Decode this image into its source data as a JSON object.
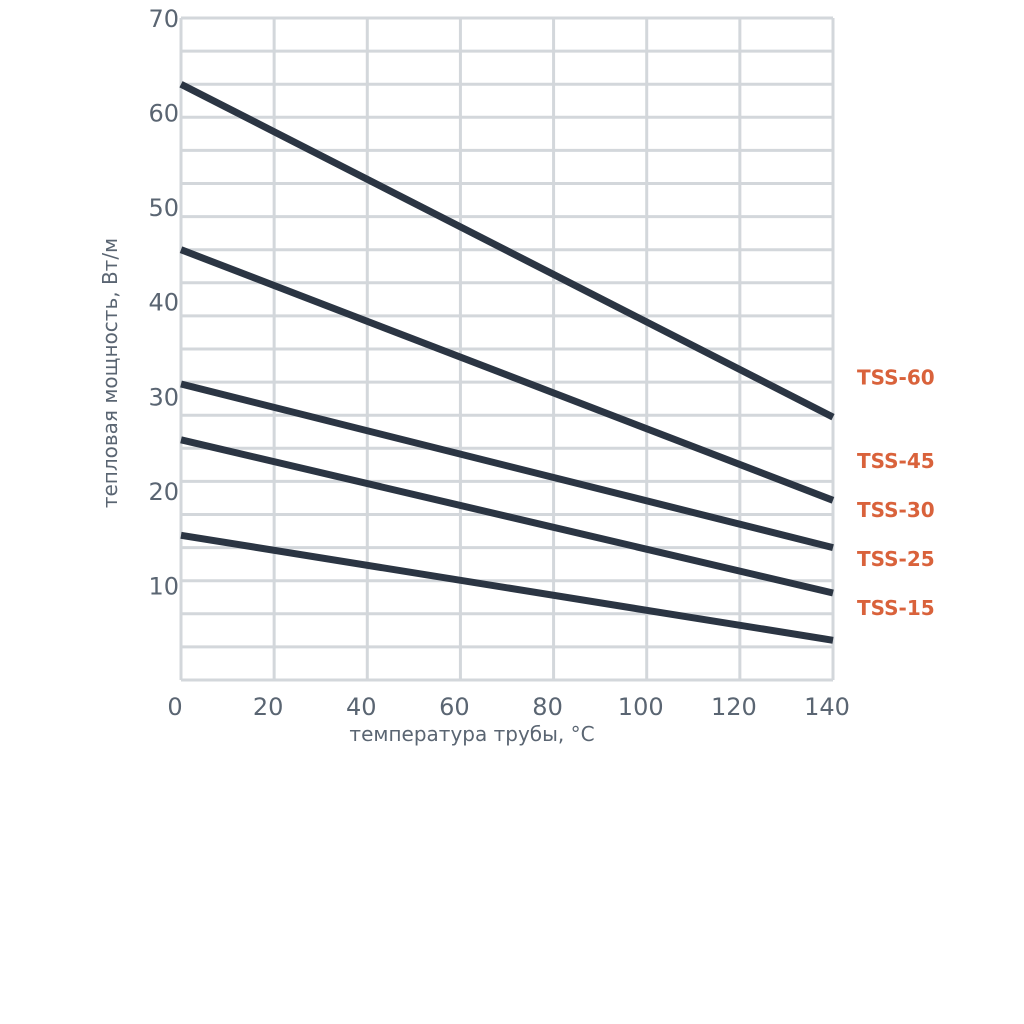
{
  "chart_data": {
    "type": "line",
    "title": "",
    "xlabel": "температура трубы, °C",
    "ylabel": "тепловая мощность, Вт/м",
    "xlim": [
      0,
      140
    ],
    "ylim": [
      0,
      70
    ],
    "x_ticks": [
      0,
      20,
      40,
      60,
      80,
      100,
      120,
      140
    ],
    "y_ticks": [
      10,
      20,
      30,
      40,
      50,
      60,
      70
    ],
    "grid": true,
    "legend": "right (labels next to line ends)",
    "series": [
      {
        "name": "TSS-60",
        "x": [
          0,
          140
        ],
        "y": [
          63.0,
          27.8
        ]
      },
      {
        "name": "TSS-45",
        "x": [
          0,
          140
        ],
        "y": [
          45.5,
          19.0
        ]
      },
      {
        "name": "TSS-30",
        "x": [
          0,
          140
        ],
        "y": [
          31.3,
          14.0
        ]
      },
      {
        "name": "TSS-25",
        "x": [
          0,
          140
        ],
        "y": [
          25.4,
          9.2
        ]
      },
      {
        "name": "TSS-15",
        "x": [
          0,
          140
        ],
        "y": [
          15.3,
          4.2
        ]
      }
    ]
  },
  "colors": {
    "line": "#2b3543",
    "label": "#d9623b",
    "grid": "#d3d7db",
    "axis_text": "#5a6572"
  }
}
